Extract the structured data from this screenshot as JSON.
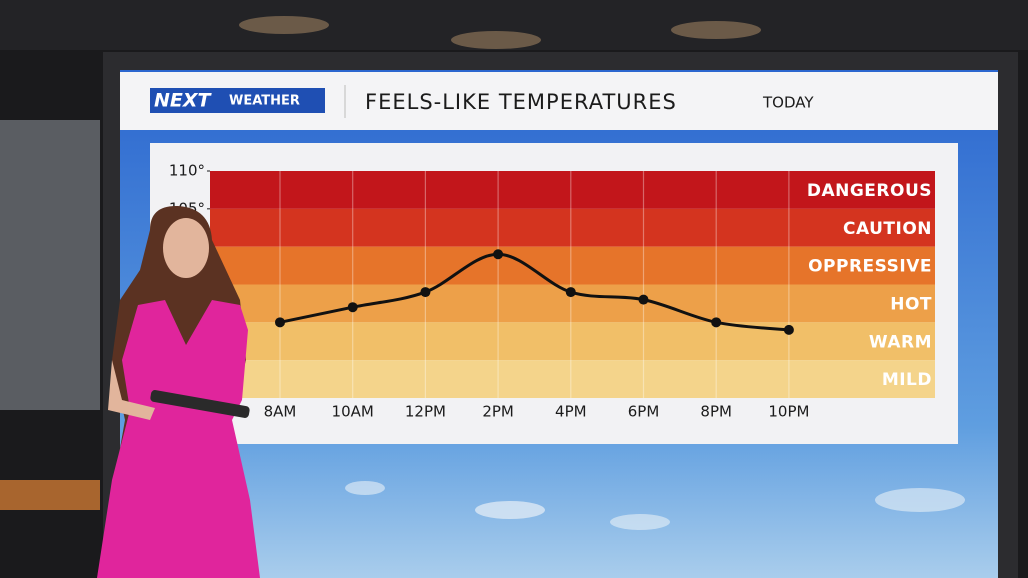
{
  "chart_data": {
    "type": "line",
    "logo": "NEXT",
    "brand": "WEATHER",
    "title": "FEELS-LIKE TEMPERATURES",
    "subtitle": "TODAY",
    "categories": [
      "8AM",
      "10AM",
      "12PM",
      "2PM",
      "4PM",
      "6PM",
      "8PM",
      "10PM"
    ],
    "values": [
      90,
      92,
      94,
      99,
      94,
      93,
      90,
      89
    ],
    "color": "#111111",
    "ylim": [
      80,
      110
    ],
    "yticks": [
      {
        "value": 110,
        "label": "110°"
      },
      {
        "value": 105,
        "label": "105°"
      }
    ],
    "bands": [
      {
        "label": "DANGEROUS",
        "from": 105,
        "to": 110,
        "color": "#c2161b"
      },
      {
        "label": "CAUTION",
        "from": 100,
        "to": 105,
        "color": "#d4341f"
      },
      {
        "label": "OPPRESSIVE",
        "from": 95,
        "to": 100,
        "color": "#e6742a"
      },
      {
        "label": "HOT",
        "from": 90,
        "to": 95,
        "color": "#eda049"
      },
      {
        "label": "WARM",
        "from": 85,
        "to": 90,
        "color": "#f1bf68"
      },
      {
        "label": "MILD",
        "from": 80,
        "to": 85,
        "color": "#f4d48b"
      }
    ]
  }
}
